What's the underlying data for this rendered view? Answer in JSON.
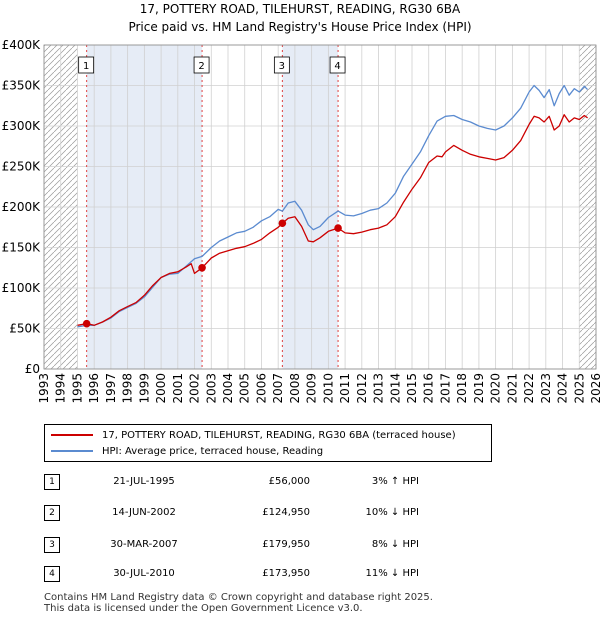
{
  "title_line1": "17, POTTERY ROAD, TILEHURST, READING, RG30 6BA",
  "title_line2": "Price paid vs. HM Land Registry's House Price Index (HPI)",
  "chart_data": {
    "type": "line",
    "title": "17, POTTERY ROAD, TILEHURST, READING, RG30 6BA — Price paid vs. HM Land Registry's House Price Index (HPI)",
    "xlabel": "",
    "ylabel": "",
    "xlim": [
      1993,
      2026
    ],
    "ylim": [
      0,
      400000
    ],
    "y_ticks": [
      {
        "value": 0,
        "label": "£0"
      },
      {
        "value": 50000,
        "label": "£50K"
      },
      {
        "value": 100000,
        "label": "£100K"
      },
      {
        "value": 150000,
        "label": "£150K"
      },
      {
        "value": 200000,
        "label": "£200K"
      },
      {
        "value": 250000,
        "label": "£250K"
      },
      {
        "value": 300000,
        "label": "£300K"
      },
      {
        "value": 350000,
        "label": "£350K"
      },
      {
        "value": 400000,
        "label": "£400K"
      }
    ],
    "x_ticks": [
      "1993",
      "1994",
      "1995",
      "1996",
      "1997",
      "1998",
      "1999",
      "2000",
      "2001",
      "2002",
      "2003",
      "2004",
      "2005",
      "2006",
      "2007",
      "2008",
      "2009",
      "2010",
      "2011",
      "2012",
      "2013",
      "2014",
      "2015",
      "2016",
      "2017",
      "2018",
      "2019",
      "2020",
      "2021",
      "2022",
      "2023",
      "2024",
      "2025",
      "2026"
    ],
    "grid": true,
    "hatch_before": 1995.0,
    "hatch_after": 2025.0,
    "band_color": "#dde6f3",
    "series": [
      {
        "name": "17, POTTERY ROAD, TILEHURST, READING, RG30 6BA (terraced house)",
        "color": "#cc0000",
        "x": [
          1995.0,
          1995.55,
          1996.0,
          1996.5,
          1997.0,
          1997.5,
          1998.0,
          1998.5,
          1999.0,
          1999.5,
          2000.0,
          2000.5,
          2001.0,
          2001.5,
          2001.8,
          2002.0,
          2002.45,
          2003.0,
          2003.5,
          2004.0,
          2004.5,
          2005.0,
          2005.5,
          2006.0,
          2006.5,
          2007.0,
          2007.25,
          2007.6,
          2008.0,
          2008.4,
          2008.8,
          2009.1,
          2009.5,
          2010.0,
          2010.58,
          2011.0,
          2011.5,
          2012.0,
          2012.5,
          2013.0,
          2013.5,
          2014.0,
          2014.5,
          2015.0,
          2015.5,
          2016.0,
          2016.5,
          2016.8,
          2017.0,
          2017.5,
          2018.0,
          2018.5,
          2019.0,
          2019.5,
          2020.0,
          2020.5,
          2021.0,
          2021.5,
          2022.0,
          2022.3,
          2022.6,
          2022.9,
          2023.2,
          2023.5,
          2023.8,
          2024.1,
          2024.4,
          2024.7,
          2025.0,
          2025.3,
          2025.5
        ],
        "values": [
          54000,
          56000,
          54000,
          58000,
          64000,
          72000,
          77000,
          82000,
          91000,
          103000,
          113000,
          118000,
          120000,
          126000,
          130000,
          118000,
          124950,
          137000,
          143000,
          146000,
          149000,
          151000,
          155000,
          160000,
          168000,
          175000,
          179950,
          186000,
          188000,
          176000,
          158000,
          157000,
          162000,
          170000,
          173950,
          168000,
          167000,
          169000,
          172000,
          174000,
          178000,
          188000,
          206000,
          222000,
          236000,
          255000,
          263000,
          262000,
          268000,
          276000,
          270000,
          265000,
          262000,
          260000,
          258000,
          261000,
          270000,
          282000,
          302000,
          312000,
          310000,
          305000,
          312000,
          295000,
          300000,
          314000,
          305000,
          310000,
          308000,
          313000,
          310000
        ]
      },
      {
        "name": "HPI: Average price, terraced house, Reading",
        "color": "#5b8bd0",
        "x": [
          1995.0,
          1995.55,
          1996.0,
          1996.5,
          1997.0,
          1997.5,
          1998.0,
          1998.5,
          1999.0,
          1999.5,
          2000.0,
          2000.5,
          2001.0,
          2001.5,
          2002.0,
          2002.45,
          2003.0,
          2003.5,
          2004.0,
          2004.5,
          2005.0,
          2005.5,
          2006.0,
          2006.5,
          2007.0,
          2007.25,
          2007.6,
          2008.0,
          2008.4,
          2008.8,
          2009.1,
          2009.5,
          2010.0,
          2010.58,
          2011.0,
          2011.5,
          2012.0,
          2012.5,
          2013.0,
          2013.5,
          2014.0,
          2014.5,
          2015.0,
          2015.5,
          2016.0,
          2016.5,
          2017.0,
          2017.5,
          2018.0,
          2018.5,
          2019.0,
          2019.5,
          2020.0,
          2020.5,
          2021.0,
          2021.5,
          2022.0,
          2022.3,
          2022.6,
          2022.9,
          2023.2,
          2023.5,
          2023.8,
          2024.1,
          2024.4,
          2024.7,
          2025.0,
          2025.3,
          2025.5
        ],
        "values": [
          52000,
          54000,
          54000,
          58000,
          63000,
          71000,
          76000,
          81000,
          89000,
          101000,
          113000,
          117000,
          118000,
          127000,
          136000,
          139000,
          150000,
          158000,
          163000,
          168000,
          170000,
          175000,
          183000,
          188000,
          197000,
          195000,
          205000,
          207000,
          196000,
          178000,
          172000,
          176000,
          187000,
          195000,
          190000,
          189000,
          192000,
          196000,
          198000,
          205000,
          217000,
          238000,
          253000,
          268000,
          288000,
          306000,
          312000,
          313000,
          308000,
          305000,
          300000,
          297000,
          295000,
          300000,
          310000,
          322000,
          342000,
          350000,
          344000,
          335000,
          345000,
          325000,
          340000,
          350000,
          338000,
          346000,
          342000,
          349000,
          345000
        ]
      }
    ],
    "sales": [
      {
        "num": "1",
        "x": 1995.55,
        "price": 56000
      },
      {
        "num": "2",
        "x": 2002.45,
        "price": 124950
      },
      {
        "num": "3",
        "x": 2007.25,
        "price": 179950
      },
      {
        "num": "4",
        "x": 2010.58,
        "price": 173950
      }
    ]
  },
  "legend": {
    "property": "17, POTTERY ROAD, TILEHURST, READING, RG30 6BA (terraced house)",
    "hpi": "HPI: Average price, terraced house, Reading"
  },
  "transactions": [
    {
      "num": "1",
      "date": "21-JUL-1995",
      "price": "£56,000",
      "hpi": "3% ↑ HPI"
    },
    {
      "num": "2",
      "date": "14-JUN-2002",
      "price": "£124,950",
      "hpi": "10% ↓ HPI"
    },
    {
      "num": "3",
      "date": "30-MAR-2007",
      "price": "£179,950",
      "hpi": "8% ↓ HPI"
    },
    {
      "num": "4",
      "date": "30-JUL-2010",
      "price": "£173,950",
      "hpi": "11% ↓ HPI"
    }
  ],
  "footer": {
    "line1": "Contains HM Land Registry data © Crown copyright and database right 2025.",
    "line2": "This data is licensed under the Open Government Licence v3.0."
  }
}
